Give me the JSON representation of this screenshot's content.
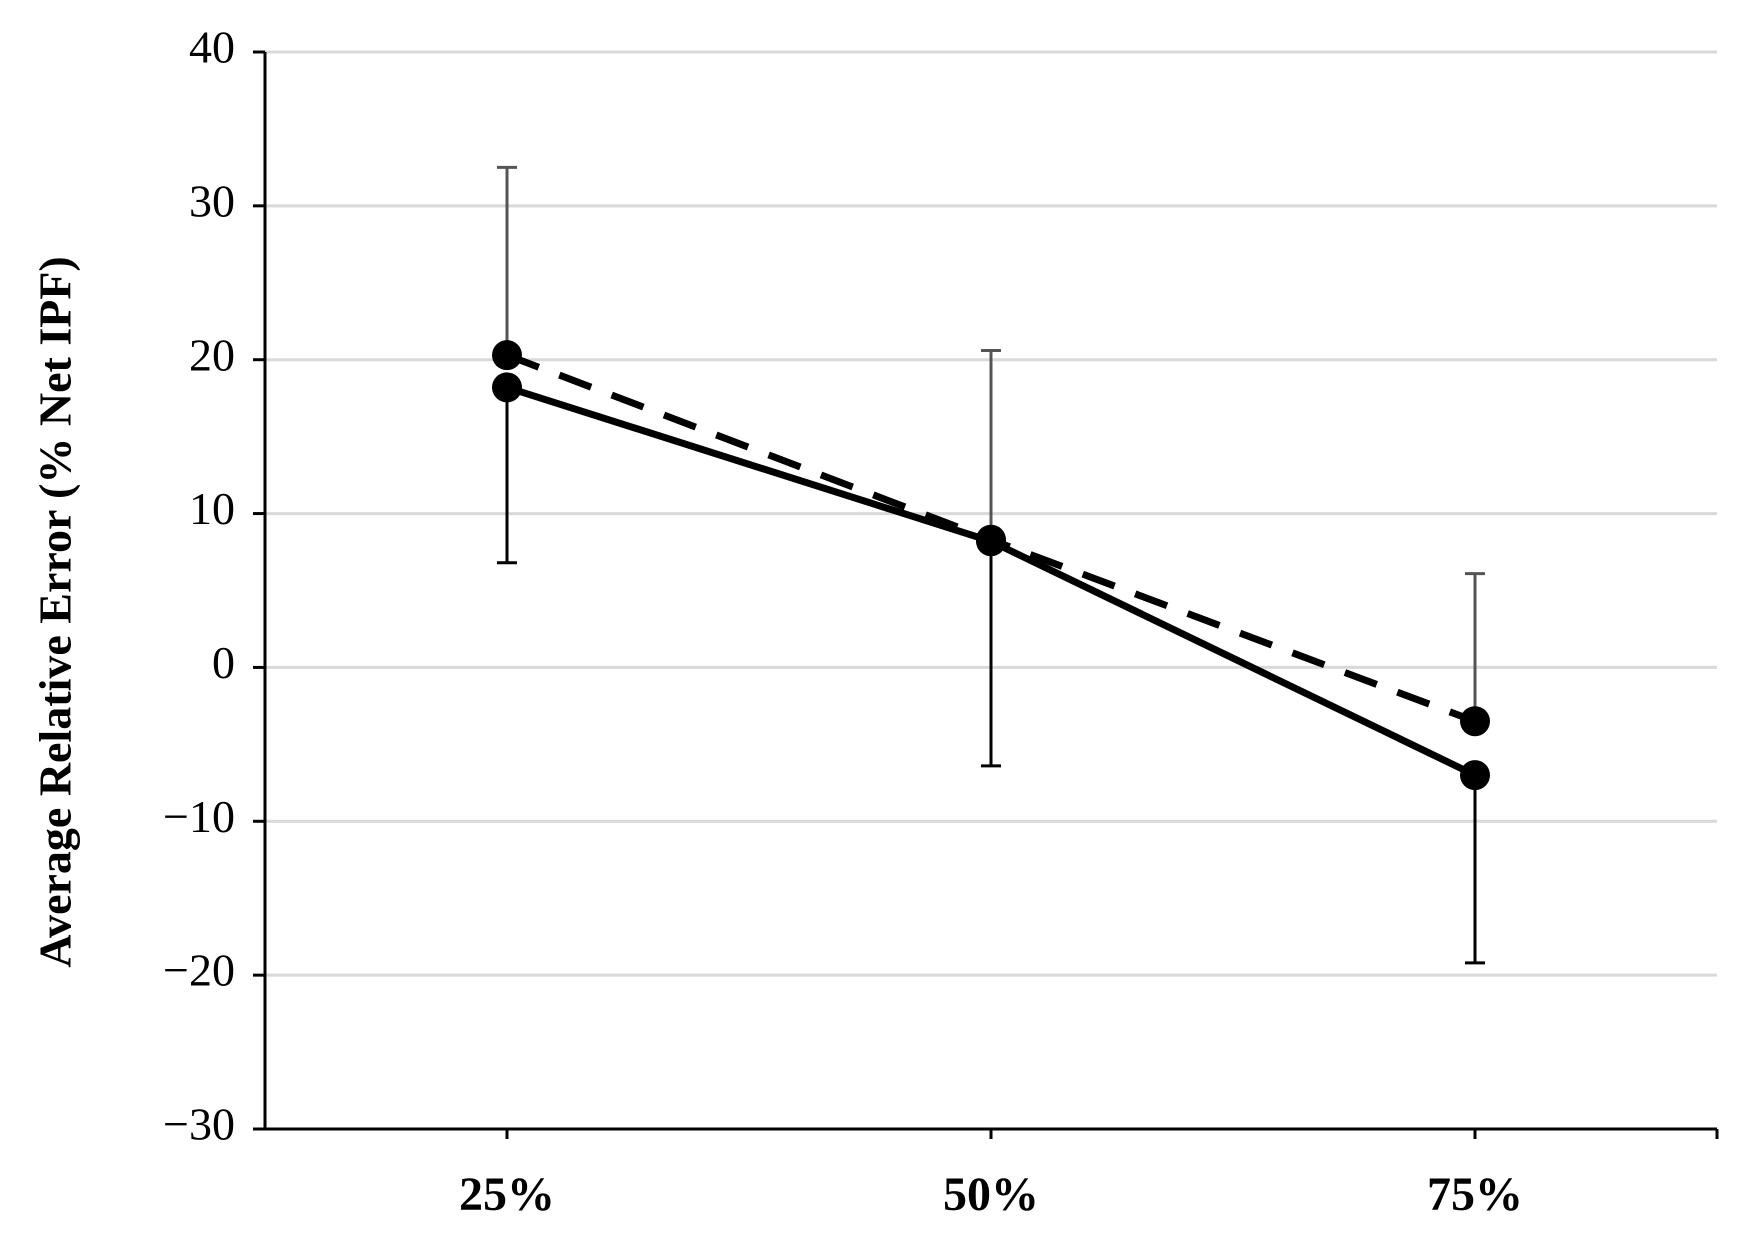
{
  "chart_data": {
    "type": "line",
    "y_label": "Average Relative Error (% Net IPF)",
    "categories": [
      "25%",
      "50%",
      "75%"
    ],
    "series": [
      {
        "color": "#000000",
        "dash": "solid",
        "values": [
          18.2,
          8.2,
          -7.0
        ],
        "errors": [
          11.4,
          14.6,
          12.2
        ],
        "error_direction": "down",
        "error_color": "#000000"
      },
      {
        "color": "#000000",
        "dash": "dashed",
        "values": [
          20.3,
          8.3,
          -3.5
        ],
        "errors": [
          12.2,
          12.3,
          9.6
        ],
        "error_direction": "up",
        "error_color": "#555555"
      }
    ],
    "ylim": [
      -30,
      40
    ],
    "yticks": [
      {
        "value": -30,
        "label": "−30"
      },
      {
        "value": -20,
        "label": "−20"
      },
      {
        "value": -10,
        "label": "−10"
      },
      0,
      10,
      20,
      30,
      40
    ],
    "grid": true
  }
}
